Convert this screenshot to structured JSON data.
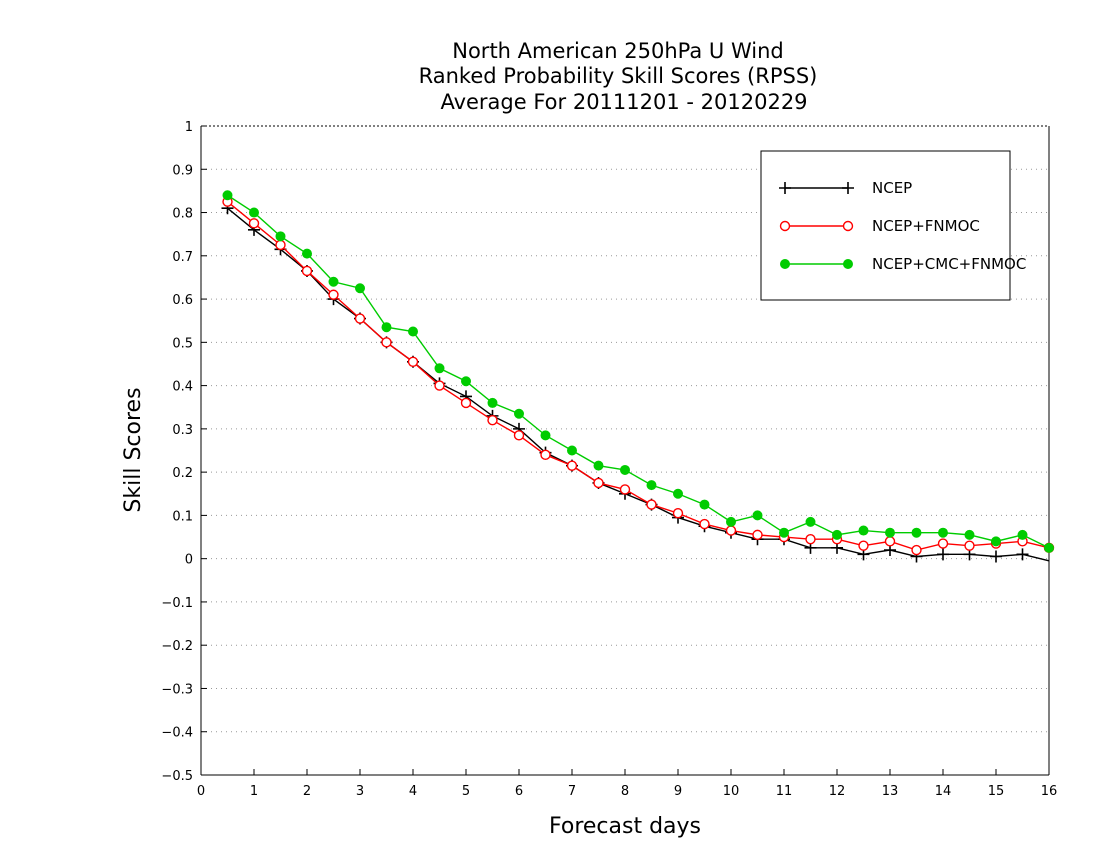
{
  "chart_data": {
    "type": "line",
    "title": [
      "North American 250hPa U Wind",
      "Ranked Probability Skill Scores (RPSS)",
      "Average For 20111201 - 20120229"
    ],
    "xlabel": "Forecast days",
    "ylabel": "Skill Scores",
    "xlim": [
      0,
      16
    ],
    "ylim": [
      -0.5,
      1
    ],
    "x_ticks": [
      0,
      1,
      2,
      3,
      4,
      5,
      6,
      7,
      8,
      9,
      10,
      11,
      12,
      13,
      14,
      15,
      16
    ],
    "x_tick_labels": [
      "0",
      "1",
      "2",
      "3",
      "4",
      "5",
      "6",
      "7",
      "8",
      "9",
      "10",
      "11",
      "12",
      "13",
      "14",
      "15",
      "16"
    ],
    "y_ticks": [
      -0.5,
      -0.4,
      -0.3,
      -0.2,
      -0.1,
      0,
      0.1,
      0.2,
      0.3,
      0.4,
      0.5,
      0.6,
      0.7,
      0.8,
      0.9,
      1
    ],
    "y_tick_labels": [
      "−0.5",
      "−0.4",
      "−0.3",
      "−0.2",
      "−0.1",
      "0",
      "0.1",
      "0.2",
      "0.3",
      "0.4",
      "0.5",
      "0.6",
      "0.7",
      "0.8",
      "0.9",
      "1"
    ],
    "grid": "horizontal dotted",
    "legend_position": "top-right",
    "x": [
      0.5,
      1,
      1.5,
      2,
      2.5,
      3,
      3.5,
      4,
      4.5,
      5,
      5.5,
      6,
      6.5,
      7,
      7.5,
      8,
      8.5,
      9,
      9.5,
      10,
      10.5,
      11,
      11.5,
      12,
      12.5,
      13,
      13.5,
      14,
      14.5,
      15,
      15.5,
      16
    ],
    "series": [
      {
        "name": "NCEP",
        "color": "#000000",
        "marker": "plus",
        "values": [
          0.81,
          0.76,
          0.715,
          0.665,
          0.6,
          0.555,
          0.5,
          0.455,
          0.405,
          0.375,
          0.33,
          0.3,
          0.245,
          0.215,
          0.175,
          0.15,
          0.125,
          0.095,
          0.075,
          0.06,
          0.045,
          0.045,
          0.025,
          0.025,
          0.01,
          0.02,
          0.005,
          0.01,
          0.01,
          0.005,
          0.01,
          -0.005
        ]
      },
      {
        "name": "NCEP+FNMOC",
        "color": "#ff0000",
        "marker": "open-circle",
        "values": [
          0.825,
          0.775,
          0.725,
          0.665,
          0.61,
          0.555,
          0.5,
          0.455,
          0.4,
          0.36,
          0.32,
          0.285,
          0.24,
          0.215,
          0.175,
          0.16,
          0.125,
          0.105,
          0.08,
          0.065,
          0.055,
          0.05,
          0.045,
          0.045,
          0.03,
          0.04,
          0.02,
          0.035,
          0.03,
          0.035,
          0.04,
          0.025
        ]
      },
      {
        "name": "NCEP+CMC+FNMOC",
        "color": "#00cc00",
        "marker": "filled-circle",
        "values": [
          0.84,
          0.8,
          0.745,
          0.705,
          0.64,
          0.625,
          0.535,
          0.525,
          0.44,
          0.41,
          0.36,
          0.335,
          0.285,
          0.25,
          0.215,
          0.205,
          0.17,
          0.15,
          0.125,
          0.085,
          0.1,
          0.06,
          0.085,
          0.055,
          0.065,
          0.06,
          0.06,
          0.06,
          0.055,
          0.04,
          0.055,
          0.025
        ]
      }
    ]
  }
}
